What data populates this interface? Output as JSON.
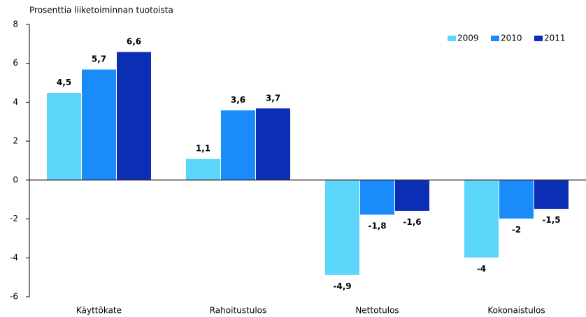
{
  "chart_data": {
    "type": "bar",
    "y_axis_label": "Prosenttia liiketoiminnan tuotoista",
    "categories": [
      "Käyttökate",
      "Rahoitustulos",
      "Nettotulos",
      "Kokonaistulos"
    ],
    "series": [
      {
        "name": "2009",
        "color": "#5cd6fa",
        "values": [
          4.5,
          1.1,
          -4.9,
          -4
        ],
        "value_labels": [
          "4,5",
          "1,1",
          "-4,9",
          "-4"
        ]
      },
      {
        "name": "2010",
        "color": "#1a8cfa",
        "values": [
          5.7,
          3.6,
          -1.8,
          -2
        ],
        "value_labels": [
          "5,7",
          "3,6",
          "-1,8",
          "-2"
        ]
      },
      {
        "name": "2011",
        "color": "#0a2eb4",
        "values": [
          6.6,
          3.7,
          -1.6,
          -1.5
        ],
        "value_labels": [
          "6,6",
          "3,7",
          "-1,6",
          "-1,5"
        ]
      }
    ],
    "ylim": [
      -6,
      8
    ],
    "yticks": [
      -6,
      -4,
      -2,
      0,
      2,
      4,
      6,
      8
    ],
    "grid": false,
    "legend": "top-right"
  }
}
